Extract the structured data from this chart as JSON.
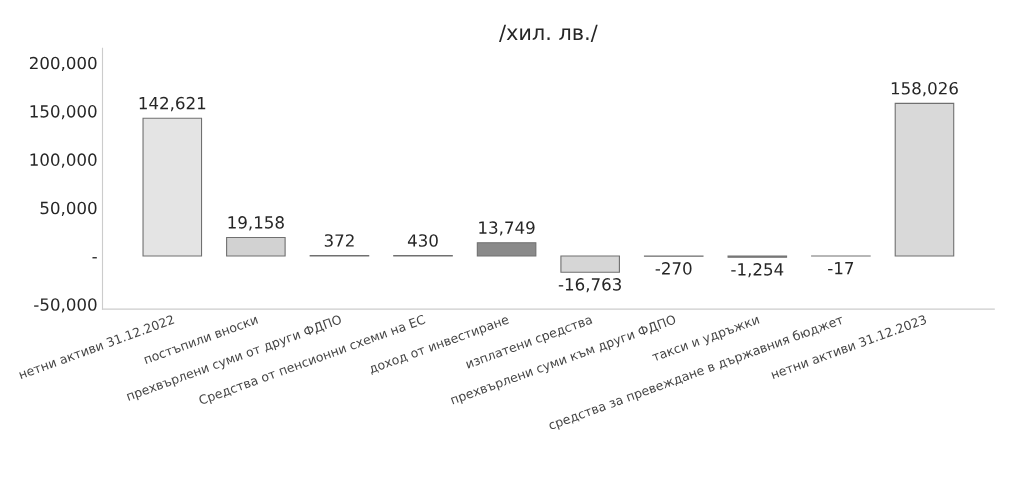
{
  "chart_data": {
    "type": "bar",
    "title": "/хил. лв./",
    "categories": [
      "нетни активи 31.12.2022",
      "постъпили вноски",
      "прехвърлени суми от други ФДПО",
      "Средства от пенсионни схеми на ЕС",
      "доход от инвестиране",
      "изплатени средства",
      "прехвърлени суми към други ФДПО",
      "такси и удръжки",
      "средства за превеждане в държавния бюджет",
      "нетни активи 31.12.2023"
    ],
    "values": [
      142621,
      19158,
      372,
      430,
      13749,
      -16763,
      -270,
      -1254,
      -17,
      158026
    ],
    "value_labels": [
      "142,621",
      "19,158",
      "372",
      "430",
      "13,749",
      "-16,763",
      "-270",
      "-1,254",
      "-17",
      "158,026"
    ],
    "colors": [
      "#e4e4e4",
      "#d2d2d2",
      "#8a8a8a",
      "#8a8a8a",
      "#8a8a8a",
      "#d6d6d6",
      "#8a8a8a",
      "#8a8a8a",
      "#8a8a8a",
      "#d9d9d9"
    ],
    "ylim": [
      -55000,
      215000
    ],
    "yticks": [
      {
        "value": -50000,
        "label": "-50,000"
      },
      {
        "value": 0,
        "label": "-"
      },
      {
        "value": 50000,
        "label": "50,000"
      },
      {
        "value": 100000,
        "label": "100,000"
      },
      {
        "value": 150000,
        "label": "150,000"
      },
      {
        "value": 200000,
        "label": "200,000"
      }
    ],
    "grid": false,
    "legend": false
  }
}
